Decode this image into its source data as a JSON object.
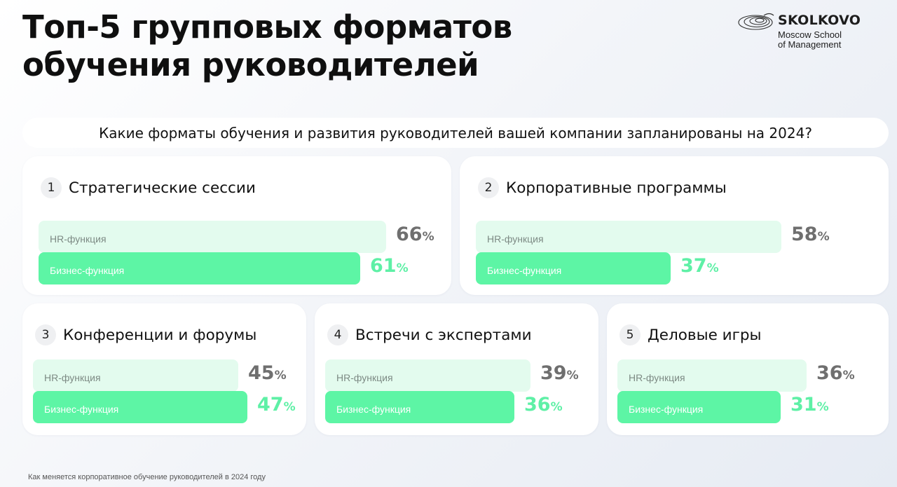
{
  "page": {
    "title_line1": "Топ-5 групповых форматов",
    "title_line2": "обучения руководителей",
    "question": "Какие форматы обучения и развития руководителей вашей компании запланированы на 2024?",
    "footer": "Как меняется корпоративное обучение руководителей в 2024 году"
  },
  "logo": {
    "name": "SKOLKOVO",
    "line1": "Moscow School",
    "line2": "of Management"
  },
  "colors": {
    "hr_bar": "#e3fbee",
    "business_bar": "#5df5a5",
    "business_value": "#5ef0a6",
    "hr_value": "#6f6f6f"
  },
  "chart_data": {
    "type": "bar",
    "orientation": "horizontal",
    "unit": "%",
    "series_labels": [
      "HR-функция",
      "Бизнес-функция"
    ],
    "items": [
      {
        "rank": "1",
        "title": "Стратегические сессии",
        "hr": 66,
        "business": 61
      },
      {
        "rank": "2",
        "title": "Корпоративные программы",
        "hr": 58,
        "business": 37
      },
      {
        "rank": "3",
        "title": "Конференции и форумы",
        "hr": 45,
        "business": 47
      },
      {
        "rank": "4",
        "title": "Встречи с экспертами",
        "hr": 39,
        "business": 36
      },
      {
        "rank": "5",
        "title": "Деловые игры",
        "hr": 36,
        "business": 31
      }
    ]
  }
}
